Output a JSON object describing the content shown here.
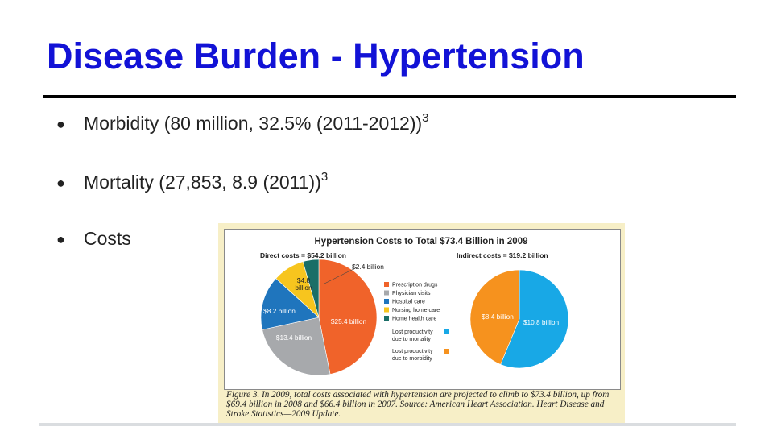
{
  "slide": {
    "title": "Disease Burden - Hypertension",
    "bullets": [
      {
        "text": "Morbidity (80 million, 32.5% (2011-2012))",
        "sup": "3"
      },
      {
        "text": "Mortality (27,853, 8.9 (2011))",
        "sup": "3"
      },
      {
        "text": "Costs",
        "sup": ""
      }
    ],
    "bullet_glyph": "●"
  },
  "figure": {
    "caption": "Figure 3. In 2009, total costs associated with hypertension are projected to climb to $73.4 billion, up from $69.4 billion in 2008 and $66.4 billion in 2007. Source: American Heart Association. Heart Disease and Stroke Statistics—2009 Update.",
    "colors": {
      "title_blue": "#1212d6",
      "frame_bg": "#f7efc7"
    }
  },
  "chart_data": [
    {
      "type": "pie",
      "title": "Hypertension Costs to Total $73.4 Billion in 2009",
      "subtitle": "Direct costs = $54.2 billion",
      "categories": [
        "Prescription drugs",
        "Physician visits",
        "Hospital care",
        "Nursing home care",
        "Home health care"
      ],
      "values": [
        25.4,
        13.4,
        8.2,
        4.8,
        2.4
      ],
      "labels": [
        "$25.4 billion",
        "$13.4 billion",
        "$8.2 billion",
        "$4.8 billion",
        "$2.4 billion"
      ],
      "colors": [
        "#f0632a",
        "#a7a9ac",
        "#1f75bd",
        "#f7c51e",
        "#1a6e67"
      ],
      "legend": "right"
    },
    {
      "type": "pie",
      "subtitle": "Indirect costs = $19.2 billion",
      "categories": [
        "Lost productivity due to mortality",
        "Lost productivity due to morbidity"
      ],
      "values": [
        10.8,
        8.4
      ],
      "labels": [
        "$10.8 billion",
        "$8.4 billion"
      ],
      "colors": [
        "#18a8e6",
        "#f6921e"
      ],
      "legend": "left"
    }
  ]
}
